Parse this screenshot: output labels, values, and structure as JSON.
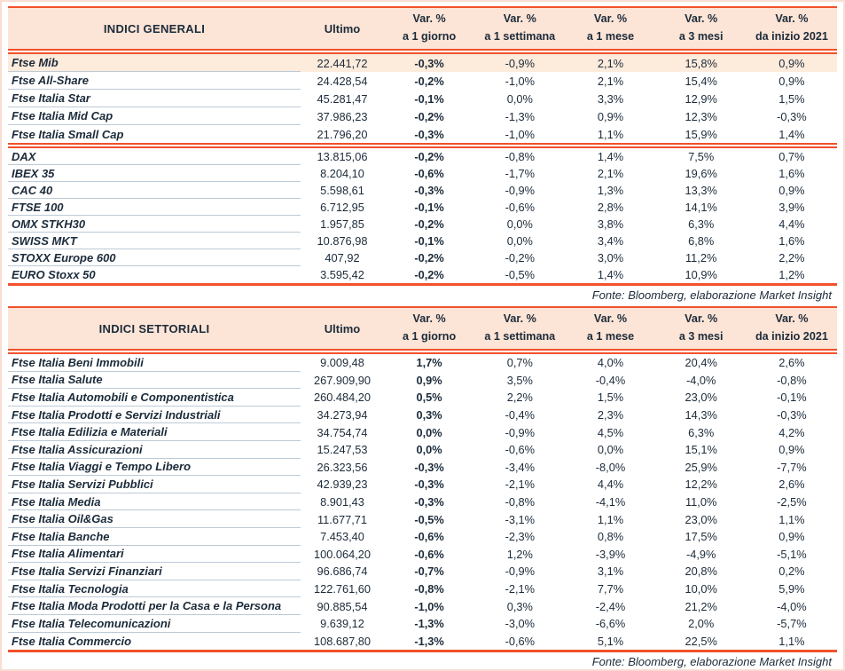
{
  "source_note": "Fonte: Bloomberg, elaborazione Market Insight",
  "colors": {
    "accent_rule": "#F2512B",
    "header_bg": "#FCE4D6",
    "highlight_row_bg": "#FDEBDC",
    "row_divider": "#BCCAD6",
    "text": "#1C2B3A",
    "page_border": "#F9DDD1"
  },
  "columns": {
    "ultimo": "Ultimo",
    "var": [
      {
        "line1": "Var. %",
        "line2": "a 1 giorno"
      },
      {
        "line1": "Var. %",
        "line2": "a 1 settimana"
      },
      {
        "line1": "Var. %",
        "line2": "a 1 mese"
      },
      {
        "line1": "Var. %",
        "line2": "a 3 mesi"
      },
      {
        "line1": "Var. %",
        "line2": "da inizio 2021"
      }
    ]
  },
  "tables": [
    {
      "title": "INDICI GENERALI",
      "groups": [
        {
          "rows": [
            {
              "name": "Ftse Mib",
              "ultimo": "22.441,72",
              "d1": "-0,3%",
              "w1": "-0,9%",
              "m1": "2,1%",
              "m3": "15,8%",
              "ytd": "0,9%",
              "highlight": true
            },
            {
              "name": "Ftse All-Share",
              "ultimo": "24.428,54",
              "d1": "-0,2%",
              "w1": "-1,0%",
              "m1": "2,1%",
              "m3": "15,4%",
              "ytd": "0,9%"
            },
            {
              "name": "Ftse Italia Star",
              "ultimo": "45.281,47",
              "d1": "-0,1%",
              "w1": "0,0%",
              "m1": "3,3%",
              "m3": "12,9%",
              "ytd": "1,5%"
            },
            {
              "name": "Ftse Italia Mid Cap",
              "ultimo": "37.986,23",
              "d1": "-0,2%",
              "w1": "-1,3%",
              "m1": "0,9%",
              "m3": "12,3%",
              "ytd": "-0,3%"
            },
            {
              "name": "Ftse Italia Small Cap",
              "ultimo": "21.796,20",
              "d1": "-0,3%",
              "w1": "-1,0%",
              "m1": "1,1%",
              "m3": "15,9%",
              "ytd": "1,4%"
            }
          ]
        },
        {
          "rows": [
            {
              "name": "DAX",
              "ultimo": "13.815,06",
              "d1": "-0,2%",
              "w1": "-0,8%",
              "m1": "1,4%",
              "m3": "7,5%",
              "ytd": "0,7%"
            },
            {
              "name": "IBEX 35",
              "ultimo": "8.204,10",
              "d1": "-0,6%",
              "w1": "-1,7%",
              "m1": "2,1%",
              "m3": "19,6%",
              "ytd": "1,6%"
            },
            {
              "name": "CAC 40",
              "ultimo": "5.598,61",
              "d1": "-0,3%",
              "w1": "-0,9%",
              "m1": "1,3%",
              "m3": "13,3%",
              "ytd": "0,9%"
            },
            {
              "name": "FTSE 100",
              "ultimo": "6.712,95",
              "d1": "-0,1%",
              "w1": "-0,6%",
              "m1": "2,8%",
              "m3": "14,1%",
              "ytd": "3,9%"
            },
            {
              "name": "OMX STKH30",
              "ultimo": "1.957,85",
              "d1": "-0,2%",
              "w1": "0,0%",
              "m1": "3,8%",
              "m3": "6,3%",
              "ytd": "4,4%"
            },
            {
              "name": "SWISS MKT",
              "ultimo": "10.876,98",
              "d1": "-0,1%",
              "w1": "0,0%",
              "m1": "3,4%",
              "m3": "6,8%",
              "ytd": "1,6%"
            },
            {
              "name": "STOXX Europe 600",
              "ultimo": "407,92",
              "d1": "-0,2%",
              "w1": "-0,2%",
              "m1": "3,0%",
              "m3": "11,2%",
              "ytd": "2,2%"
            },
            {
              "name": "EURO Stoxx 50",
              "ultimo": "3.595,42",
              "d1": "-0,2%",
              "w1": "-0,5%",
              "m1": "1,4%",
              "m3": "10,9%",
              "ytd": "1,2%"
            }
          ]
        }
      ]
    },
    {
      "title": "INDICI SETTORIALI",
      "groups": [
        {
          "rows": [
            {
              "name": "Ftse Italia Beni Immobili",
              "ultimo": "9.009,48",
              "d1": "1,7%",
              "w1": "0,7%",
              "m1": "4,0%",
              "m3": "20,4%",
              "ytd": "2,6%"
            },
            {
              "name": "Ftse Italia Salute",
              "ultimo": "267.909,90",
              "d1": "0,9%",
              "w1": "3,5%",
              "m1": "-0,4%",
              "m3": "-4,0%",
              "ytd": "-0,8%"
            },
            {
              "name": "Ftse Italia Automobili e Componentistica",
              "ultimo": "260.484,20",
              "d1": "0,5%",
              "w1": "2,2%",
              "m1": "1,5%",
              "m3": "23,0%",
              "ytd": "-0,1%"
            },
            {
              "name": "Ftse Italia Prodotti e Servizi Industriali",
              "ultimo": "34.273,94",
              "d1": "0,3%",
              "w1": "-0,4%",
              "m1": "2,3%",
              "m3": "14,3%",
              "ytd": "-0,3%"
            },
            {
              "name": "Ftse Italia Edilizia e Materiali",
              "ultimo": "34.754,74",
              "d1": "0,0%",
              "w1": "-0,9%",
              "m1": "4,5%",
              "m3": "6,3%",
              "ytd": "4,2%"
            },
            {
              "name": "Ftse Italia Assicurazioni",
              "ultimo": "15.247,53",
              "d1": "0,0%",
              "w1": "-0,6%",
              "m1": "0,0%",
              "m3": "15,1%",
              "ytd": "0,9%"
            },
            {
              "name": "Ftse Italia Viaggi e Tempo Libero",
              "ultimo": "26.323,56",
              "d1": "-0,3%",
              "w1": "-3,4%",
              "m1": "-8,0%",
              "m3": "25,9%",
              "ytd": "-7,7%"
            },
            {
              "name": "Ftse Italia Servizi Pubblici",
              "ultimo": "42.939,23",
              "d1": "-0,3%",
              "w1": "-2,1%",
              "m1": "4,4%",
              "m3": "12,2%",
              "ytd": "2,6%"
            },
            {
              "name": "Ftse Italia Media",
              "ultimo": "8.901,43",
              "d1": "-0,3%",
              "w1": "-0,8%",
              "m1": "-4,1%",
              "m3": "11,0%",
              "ytd": "-2,5%"
            },
            {
              "name": "Ftse Italia Oil&Gas",
              "ultimo": "11.677,71",
              "d1": "-0,5%",
              "w1": "-3,1%",
              "m1": "1,1%",
              "m3": "23,0%",
              "ytd": "1,1%"
            },
            {
              "name": "Ftse Italia Banche",
              "ultimo": "7.453,40",
              "d1": "-0,6%",
              "w1": "-2,3%",
              "m1": "0,8%",
              "m3": "17,5%",
              "ytd": "0,9%"
            },
            {
              "name": "Ftse Italia Alimentari",
              "ultimo": "100.064,20",
              "d1": "-0,6%",
              "w1": "1,2%",
              "m1": "-3,9%",
              "m3": "-4,9%",
              "ytd": "-5,1%"
            },
            {
              "name": "Ftse Italia Servizi Finanziari",
              "ultimo": "96.686,74",
              "d1": "-0,7%",
              "w1": "-0,9%",
              "m1": "3,1%",
              "m3": "20,8%",
              "ytd": "0,2%"
            },
            {
              "name": "Ftse Italia Tecnologia",
              "ultimo": "122.761,60",
              "d1": "-0,8%",
              "w1": "-2,1%",
              "m1": "7,7%",
              "m3": "10,0%",
              "ytd": "5,9%"
            },
            {
              "name": "Ftse Italia Moda Prodotti per la Casa e la Persona",
              "ultimo": "90.885,54",
              "d1": "-1,0%",
              "w1": "0,3%",
              "m1": "-2,4%",
              "m3": "21,2%",
              "ytd": "-4,0%"
            },
            {
              "name": "Ftse Italia Telecomunicazioni",
              "ultimo": "9.639,12",
              "d1": "-1,3%",
              "w1": "-3,0%",
              "m1": "-6,6%",
              "m3": "2,0%",
              "ytd": "-5,7%"
            },
            {
              "name": "Ftse Italia Commercio",
              "ultimo": "108.687,80",
              "d1": "-1,3%",
              "w1": "-0,6%",
              "m1": "5,1%",
              "m3": "22,5%",
              "ytd": "1,1%"
            }
          ]
        }
      ]
    }
  ]
}
